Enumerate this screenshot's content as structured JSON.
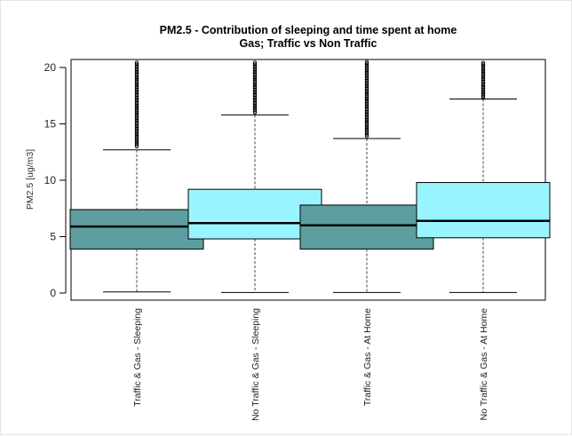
{
  "chart_data": {
    "type": "box",
    "title": "PM2.5 - Contribution of sleeping and time spent at home",
    "subtitle": "Gas; Traffic vs Non Traffic",
    "xlabel": "",
    "ylabel": "PM2.5 [ug/m3]",
    "ylim": [
      0,
      20.5
    ],
    "yticks": [
      0,
      5,
      10,
      15,
      20
    ],
    "grid": false,
    "legend": "none",
    "categories": [
      "Traffic & Gas - Sleeping",
      "No Traffic & Gas - Sleeping",
      "Traffic & Gas - At Home",
      "No Traffic & Gas - At Home"
    ],
    "boxes": [
      {
        "whisker_low": 0.1,
        "q1": 3.9,
        "median": 5.9,
        "q3": 7.4,
        "whisker_high": 12.7,
        "outliers_from": 13.0,
        "color": "#5f9ea0"
      },
      {
        "whisker_low": 0.05,
        "q1": 4.8,
        "median": 6.2,
        "q3": 9.2,
        "whisker_high": 15.8,
        "outliers_from": 16.0,
        "color": "#98f5ff"
      },
      {
        "whisker_low": 0.05,
        "q1": 3.9,
        "median": 6.0,
        "q3": 7.8,
        "whisker_high": 13.7,
        "outliers_from": 13.9,
        "color": "#5f9ea0"
      },
      {
        "whisker_low": 0.05,
        "q1": 4.9,
        "median": 6.4,
        "q3": 9.8,
        "whisker_high": 17.2,
        "outliers_from": 17.3,
        "color": "#98f5ff"
      }
    ]
  }
}
